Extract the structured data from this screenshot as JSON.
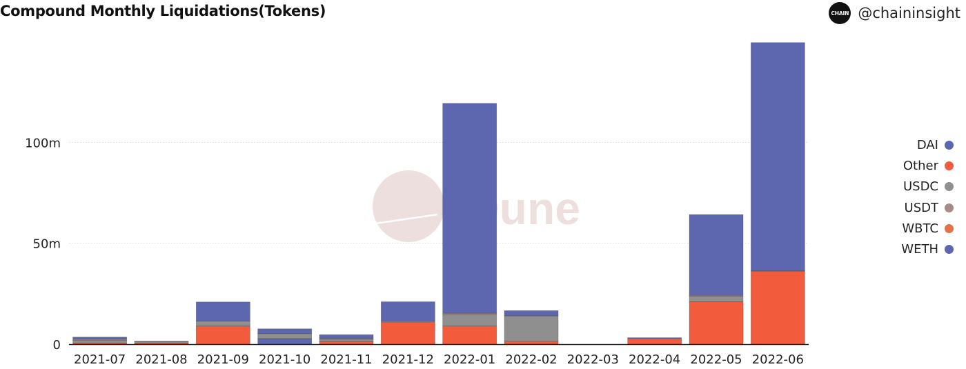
{
  "header": {
    "title": "Compound Monthly Liquidations(Tokens)",
    "logo_text": "CHAIN",
    "handle": "@chaininsight"
  },
  "watermark": "Dune",
  "chart_data": {
    "type": "bar",
    "stacked": true,
    "title": "Compound Monthly Liquidations(Tokens)",
    "xlabel": "",
    "ylabel": "",
    "ylim": [
      0,
      150000000
    ],
    "yticks": [
      0,
      50000000,
      100000000
    ],
    "ytick_labels": [
      "0",
      "50m",
      "100m"
    ],
    "grid": "horizontal dotted",
    "legend_position": "right",
    "categories": [
      "2021-07",
      "2021-08",
      "2021-09",
      "2021-10",
      "2021-11",
      "2021-12",
      "2022-01",
      "2022-02",
      "2022-03",
      "2022-04",
      "2022-05",
      "2022-06"
    ],
    "series": [
      {
        "name": "DAI",
        "color": "#5d67b0",
        "values": [
          0,
          0,
          0,
          2800000,
          0,
          0,
          0,
          0,
          0,
          0,
          0,
          0
        ]
      },
      {
        "name": "Other",
        "color": "#f25c3c",
        "values": [
          500000,
          500000,
          9000000,
          0,
          1200000,
          11000000,
          9000000,
          1500000,
          0,
          2800000,
          21000000,
          36000000
        ]
      },
      {
        "name": "USDC",
        "color": "#8f8f8f",
        "values": [
          1500000,
          700000,
          2400000,
          2400000,
          1200000,
          500000,
          5500000,
          12500000,
          0,
          0,
          2800000,
          0
        ]
      },
      {
        "name": "USDT",
        "color": "#a88a86",
        "values": [
          500000,
          300000,
          0,
          0,
          500000,
          0,
          800000,
          0,
          0,
          0,
          400000,
          400000
        ]
      },
      {
        "name": "WBTC",
        "color": "#e3714a",
        "values": [
          0,
          0,
          0,
          0,
          0,
          0,
          0,
          0,
          0,
          0,
          0,
          0
        ]
      },
      {
        "name": "WETH",
        "color": "#5d67b0",
        "values": [
          1000000,
          0,
          9500000,
          2400000,
          1800000,
          9500000,
          104000000,
          2600000,
          0,
          400000,
          40000000,
          113000000
        ]
      }
    ]
  }
}
